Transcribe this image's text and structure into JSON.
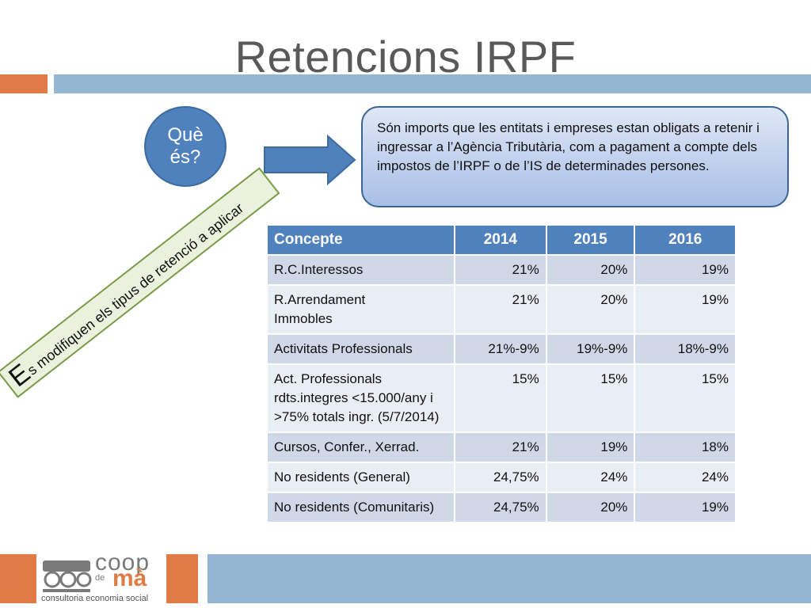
{
  "slide": {
    "title": "Retencions IRPF",
    "circle_text": "Què és?",
    "definition": "Són imports que les entitats i empreses estan obligats a retenir i ingressar a l’Agència Tributària, com a pagament a compte dels impostos de  l’IRPF o de l’IS de determinades persones.",
    "diagonal_first_letter": "E",
    "diagonal_rest": "s modifiquen els tipus de retenció a aplicar"
  },
  "table": {
    "headers": [
      "Concepte",
      "2014",
      "2015",
      "2016"
    ],
    "rows": [
      [
        "R.C.Interessos",
        "21%",
        "20%",
        "19%"
      ],
      [
        "R.Arrendament\nImmobles",
        "21%",
        "20%",
        "19%"
      ],
      [
        "Activitats Professionals",
        "21%-9%",
        "19%-9%",
        "18%-9%"
      ],
      [
        "Act. Professionals rdts.integres <15.000/any i >75% totals ingr. (5/7/2014)",
        "15%",
        "15%",
        "15%"
      ],
      [
        "Cursos, Confer., Xerrad.",
        "21%",
        "19%",
        "18%"
      ],
      [
        "No residents (General)",
        "24,75%",
        "24%",
        "24%"
      ],
      [
        "No residents (Comunitaris)",
        "24,75%",
        "20%",
        "19%"
      ]
    ]
  },
  "logo": {
    "word_coop": "coop",
    "word_de": "de",
    "word_ma": "mà",
    "tagline": "consultoria economia social"
  },
  "colors": {
    "accent_blue": "#4f81bd",
    "accent_orange": "#e07b45",
    "light_blue_bar": "#94b6d3"
  }
}
